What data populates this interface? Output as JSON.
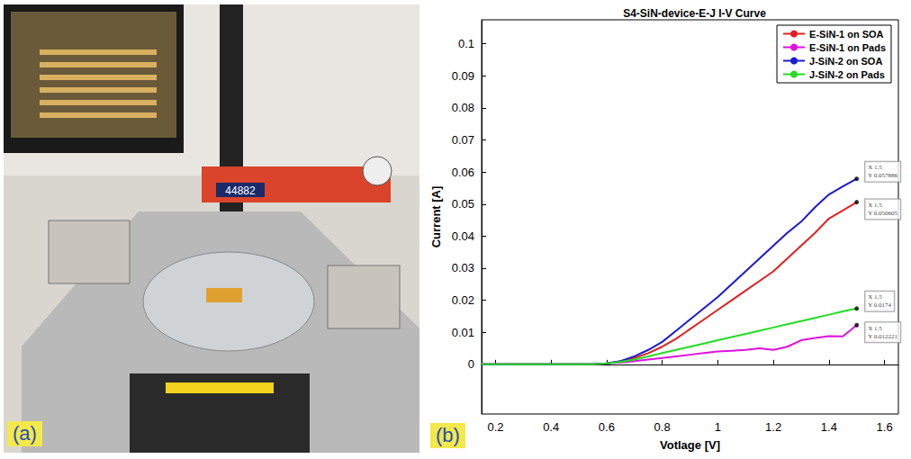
{
  "panel_labels": [
    "(a)",
    "(b)"
  ],
  "photo": {
    "sign_text": "44882"
  },
  "chart_data": {
    "type": "line",
    "title": "S4-SiN-device-E-J I-V Curve",
    "x_label": "Votlage [V]",
    "y_label": "Current [A]",
    "x": [
      0.15,
      0.2,
      0.25,
      0.3,
      0.35,
      0.4,
      0.45,
      0.5,
      0.55,
      0.6,
      0.65,
      0.7,
      0.75,
      0.8,
      0.85,
      0.9,
      0.95,
      1.0,
      1.05,
      1.1,
      1.15,
      1.2,
      1.25,
      1.3,
      1.35,
      1.4,
      1.45,
      1.5
    ],
    "series": [
      {
        "name": "E-SiN-1 on SOA",
        "color": "#e02020",
        "values": [
          0,
          0,
          0,
          0,
          0,
          0,
          0,
          0,
          0,
          0.0003,
          0.0009,
          0.002,
          0.0035,
          0.0055,
          0.008,
          0.011,
          0.014,
          0.017,
          0.02,
          0.023,
          0.026,
          0.029,
          0.033,
          0.037,
          0.041,
          0.0455,
          0.048,
          0.050605
        ]
      },
      {
        "name": "E-SiN-1 on Pads",
        "color": "#e010e0",
        "values": [
          0,
          0,
          0,
          0,
          0,
          0,
          0,
          0,
          0,
          0.0003,
          0.0006,
          0.001,
          0.0015,
          0.002,
          0.0025,
          0.003,
          0.0035,
          0.004,
          0.0042,
          0.0045,
          0.005,
          0.0045,
          0.0055,
          0.0075,
          0.0082,
          0.0088,
          0.0087,
          0.012221
        ]
      },
      {
        "name": "J-SiN-2 on SOA",
        "color": "#1a1ad0",
        "values": [
          0,
          0,
          0,
          0,
          0,
          0,
          0,
          0,
          0,
          0.0003,
          0.001,
          0.0025,
          0.0045,
          0.007,
          0.0105,
          0.014,
          0.0175,
          0.021,
          0.025,
          0.029,
          0.033,
          0.037,
          0.041,
          0.0445,
          0.049,
          0.053,
          0.0555,
          0.057886
        ]
      },
      {
        "name": "J-SiN-2 on Pads",
        "color": "#22dd22",
        "values": [
          0,
          0,
          0,
          0,
          0,
          0,
          0,
          0,
          0,
          0.0003,
          0.0008,
          0.0015,
          0.0025,
          0.0035,
          0.0045,
          0.0055,
          0.0065,
          0.0075,
          0.0085,
          0.0095,
          0.0105,
          0.0115,
          0.0125,
          0.0135,
          0.0145,
          0.0155,
          0.0165,
          0.0174
        ]
      }
    ],
    "xlim": [
      0.15,
      1.65
    ],
    "xticks": [
      0.2,
      0.4,
      0.6,
      0.8,
      1,
      1.2,
      1.4,
      1.6
    ],
    "ylim": [
      -0.0155,
      0.1075
    ],
    "yticks": [
      0,
      0.01,
      0.02,
      0.03,
      0.04,
      0.05,
      0.06,
      0.07,
      0.08,
      0.09,
      0.1
    ],
    "grid": false,
    "legend": "upper right",
    "annotations": [
      {
        "x": 1.5,
        "y": 0.057886,
        "text": [
          "X 1.5",
          "Y 0.057886"
        ]
      },
      {
        "x": 1.5,
        "y": 0.050605,
        "text": [
          "X 1.5",
          "Y 0.050605"
        ]
      },
      {
        "x": 1.5,
        "y": 0.0174,
        "text": [
          "X 1.5",
          "Y 0.0174"
        ]
      },
      {
        "x": 1.5,
        "y": 0.012221,
        "text": [
          "X 1.5",
          "Y 0.012221"
        ]
      }
    ]
  }
}
